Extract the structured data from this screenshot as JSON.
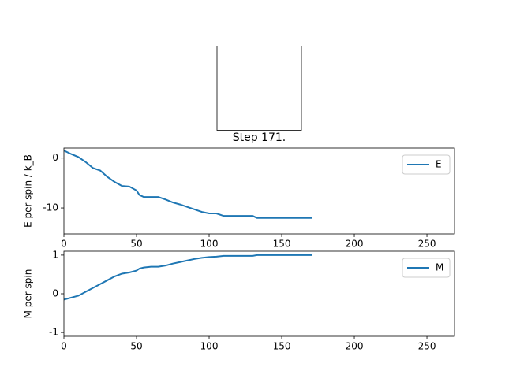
{
  "chart_data": [
    {
      "type": "line",
      "title": "Step 171.",
      "y_label": "E per spin / k_B",
      "x": [
        0,
        5,
        10,
        15,
        20,
        25,
        30,
        35,
        40,
        45,
        50,
        52,
        55,
        60,
        65,
        70,
        75,
        80,
        85,
        90,
        95,
        100,
        105,
        110,
        115,
        120,
        125,
        130,
        133,
        140,
        150,
        160,
        171
      ],
      "series": [
        {
          "name": "E",
          "color": "#1f77b4",
          "values": [
            1.5,
            0.8,
            0.2,
            -0.8,
            -2,
            -2.5,
            -3.8,
            -4.8,
            -5.6,
            -5.7,
            -6.5,
            -7.4,
            -7.8,
            -7.8,
            -7.8,
            -8.3,
            -8.9,
            -9.3,
            -9.8,
            -10.3,
            -10.8,
            -11.1,
            -11.1,
            -11.6,
            -11.6,
            -11.6,
            -11.6,
            -11.6,
            -12,
            -12,
            -12,
            -12,
            -12
          ]
        }
      ],
      "xlim": [
        0,
        269
      ],
      "xticks": [
        0,
        50,
        100,
        150,
        200,
        250
      ],
      "ylim": [
        -15.2,
        2
      ],
      "yticks": [
        -10,
        0
      ],
      "legend": "upper right"
    },
    {
      "type": "line",
      "y_label": "M per spin",
      "x": [
        0,
        5,
        10,
        15,
        20,
        25,
        30,
        35,
        40,
        45,
        50,
        52,
        55,
        60,
        65,
        70,
        75,
        80,
        85,
        90,
        95,
        100,
        105,
        110,
        115,
        120,
        125,
        130,
        133,
        140,
        150,
        160,
        171
      ],
      "series": [
        {
          "name": "M",
          "color": "#1f77b4",
          "values": [
            -0.15,
            -0.1,
            -0.05,
            0.05,
            0.15,
            0.25,
            0.35,
            0.45,
            0.52,
            0.55,
            0.6,
            0.65,
            0.68,
            0.7,
            0.7,
            0.73,
            0.78,
            0.82,
            0.86,
            0.9,
            0.93,
            0.95,
            0.96,
            0.98,
            0.98,
            0.98,
            0.98,
            0.98,
            1.0,
            1.0,
            1.0,
            1.0,
            1.0
          ]
        }
      ],
      "xlim": [
        0,
        269
      ],
      "xticks": [
        0,
        50,
        100,
        150,
        200,
        250
      ],
      "ylim": [
        -1.1,
        1.1
      ],
      "yticks": [
        -1,
        0,
        1
      ],
      "legend": "upper right"
    }
  ]
}
